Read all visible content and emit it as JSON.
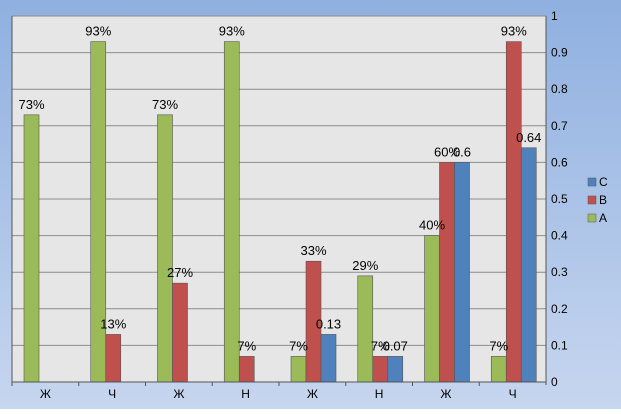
{
  "colors": {
    "A": "#9bbb59",
    "B": "#c0504d",
    "C": "#4f81bd",
    "plot_background": "#e6e6e6",
    "gridline": "#8c8c8c"
  },
  "chart_data": {
    "type": "bar",
    "categories": [
      "Ж",
      "Ч",
      "Ж",
      "Н",
      "Ж",
      "Н",
      "Ж",
      "Ч"
    ],
    "series": [
      {
        "name": "A",
        "values": [
          0.73,
          0.93,
          0.73,
          0.93,
          0.07,
          0.29,
          0.4,
          0.07
        ]
      },
      {
        "name": "B",
        "values": [
          null,
          0.13,
          0.27,
          0.07,
          0.33,
          0.07,
          0.6,
          0.93
        ]
      },
      {
        "name": "C",
        "values": [
          null,
          null,
          null,
          null,
          0.13,
          0.07,
          0.6,
          0.64
        ]
      }
    ],
    "data_labels": {
      "A": [
        "73%",
        "93%",
        "73%",
        "93%",
        "7%",
        "29%",
        "40%",
        "7%"
      ],
      "B": [
        "",
        "13%",
        "27%",
        "7%",
        "33%",
        "7%",
        "60%",
        "93%"
      ],
      "C": [
        "",
        "",
        "",
        "",
        "0.13",
        "0.07",
        "0.6",
        "0.64"
      ]
    },
    "y_ticks": [
      "0",
      "0.1",
      "0.2",
      "0.3",
      "0.4",
      "0.5",
      "0.6",
      "0.7",
      "0.8",
      "0.9",
      "1"
    ],
    "ylim": [
      0,
      1
    ],
    "y_axis_side": "right",
    "grid": true,
    "legend": {
      "position": "right",
      "entries": [
        "C",
        "B",
        "A"
      ]
    },
    "title": "",
    "xlabel": "",
    "ylabel": ""
  }
}
